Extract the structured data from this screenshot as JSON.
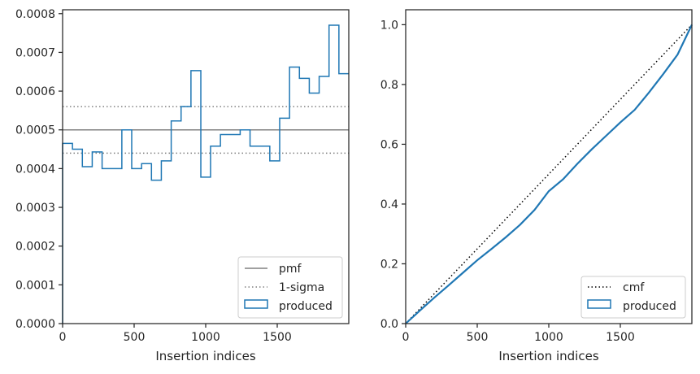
{
  "chart_data": [
    {
      "type": "line",
      "xlabel": "Insertion indices",
      "ylabel": "",
      "xlim": [
        0,
        2000
      ],
      "ylim": [
        0,
        0.00081
      ],
      "xticks": [
        0,
        500,
        1000,
        1500
      ],
      "xtick_labels": [
        "0",
        "500",
        "1000",
        "1500"
      ],
      "yticks": [
        0,
        0.0001,
        0.0002,
        0.0003,
        0.0004,
        0.0005,
        0.0006,
        0.0007,
        0.0008
      ],
      "ytick_labels": [
        "0.0000",
        "0.0001",
        "0.0002",
        "0.0003",
        "0.0004",
        "0.0005",
        "0.0006",
        "0.0007",
        "0.0008"
      ],
      "legend_position": "bottom-right",
      "hlines": [
        {
          "name": "pmf",
          "y": 0.0005,
          "color": "#808080",
          "style": "solid"
        },
        {
          "name": "1-sigma",
          "y": 0.00056,
          "color": "#808080",
          "style": "dotted"
        },
        {
          "name": "1-sigma",
          "y": 0.00044,
          "color": "#808080",
          "style": "dotted"
        }
      ],
      "series": [
        {
          "name": "produced",
          "kind": "step-histogram",
          "color": "#1f77b4",
          "bin_edges": [
            0,
            69,
            138,
            207,
            276,
            345,
            414,
            483,
            552,
            621,
            690,
            759,
            828,
            897,
            966,
            1034,
            1103,
            1172,
            1241,
            1310,
            1379,
            1448,
            1517,
            1586,
            1655,
            1724,
            1793,
            1862,
            1931,
            2000
          ],
          "values": [
            0.000465,
            0.00045,
            0.000405,
            0.000443,
            0.0004,
            0.0004,
            0.0005,
            0.0004,
            0.000413,
            0.00037,
            0.00042,
            0.000523,
            0.00056,
            0.000653,
            0.000378,
            0.000458,
            0.000488,
            0.000488,
            0.0005,
            0.000458,
            0.000458,
            0.00042,
            0.00053,
            0.000662,
            0.000633,
            0.000595,
            0.000638,
            0.00077,
            0.000645
          ]
        }
      ]
    },
    {
      "type": "line",
      "xlabel": "Insertion indices",
      "ylabel": "",
      "xlim": [
        0,
        2000
      ],
      "ylim": [
        0,
        1.05
      ],
      "xticks": [
        0,
        500,
        1000,
        1500
      ],
      "xtick_labels": [
        "0",
        "500",
        "1000",
        "1500"
      ],
      "yticks": [
        0,
        0.2,
        0.4,
        0.6,
        0.8,
        1.0
      ],
      "ytick_labels": [
        "0.0",
        "0.2",
        "0.4",
        "0.6",
        "0.8",
        "1.0"
      ],
      "legend_position": "bottom-right",
      "series": [
        {
          "name": "cmf",
          "color": "#000000",
          "style": "dotted",
          "x": [
            0,
            2000
          ],
          "y": [
            0,
            1.0
          ]
        },
        {
          "name": "produced",
          "color": "#1f77b4",
          "style": "solid",
          "x": [
            0,
            100,
            200,
            300,
            400,
            500,
            600,
            700,
            800,
            900,
            1000,
            1100,
            1200,
            1300,
            1400,
            1500,
            1600,
            1700,
            1800,
            1900,
            2000
          ],
          "y": [
            0,
            0.044,
            0.087,
            0.128,
            0.17,
            0.212,
            0.25,
            0.289,
            0.331,
            0.38,
            0.443,
            0.483,
            0.535,
            0.583,
            0.628,
            0.673,
            0.715,
            0.773,
            0.835,
            0.9,
            1.0
          ]
        }
      ]
    }
  ]
}
